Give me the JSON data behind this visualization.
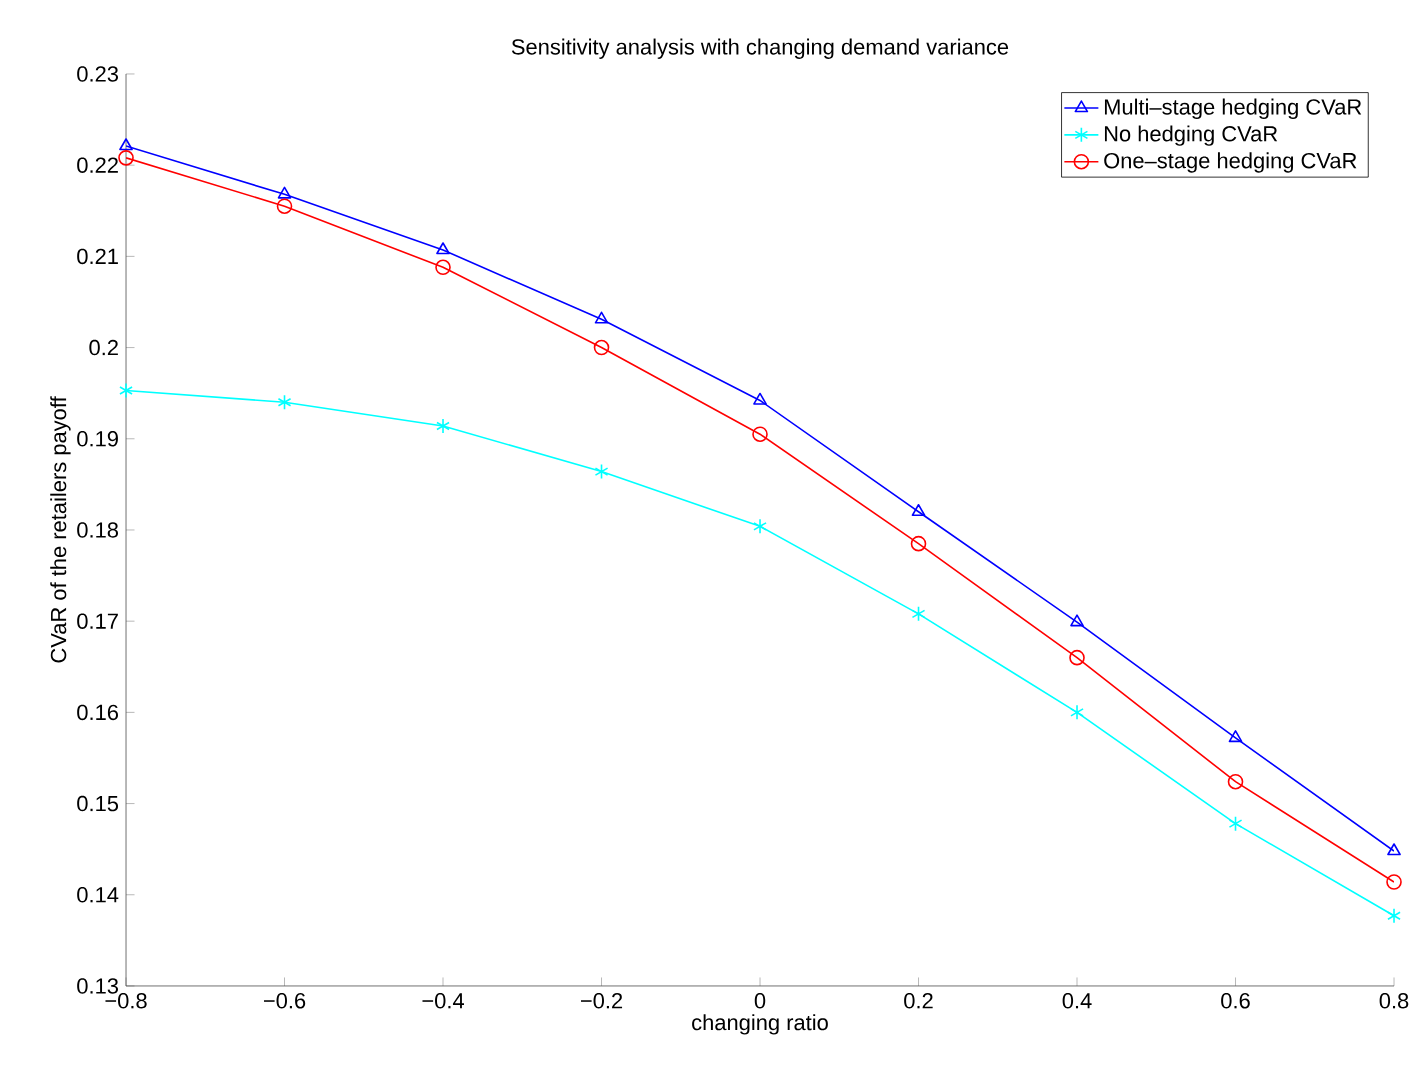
{
  "chart_data": {
    "type": "line",
    "title": "Sensitivity analysis with changing demand variance",
    "xlabel": "changing ratio",
    "ylabel": "CVaR of the retailers payoff",
    "x": [
      -0.8,
      -0.6,
      -0.4,
      -0.2,
      0,
      0.2,
      0.4,
      0.6,
      0.8
    ],
    "series": [
      {
        "name": "Multi–stage hedging CVaR",
        "color": "#0000ff",
        "marker": "triangle",
        "values": [
          0.2221,
          0.2168,
          0.2107,
          0.2031,
          0.1942,
          0.182,
          0.1699,
          0.1572,
          0.1448
        ]
      },
      {
        "name": "No hedging CVaR",
        "color": "#00ffff",
        "marker": "cross",
        "values": [
          0.1953,
          0.194,
          0.1914,
          0.1864,
          0.1804,
          0.1708,
          0.16,
          0.1478,
          0.1377
        ]
      },
      {
        "name": "One–stage hedging CVaR",
        "color": "#ff0000",
        "marker": "circle",
        "values": [
          0.2208,
          0.2155,
          0.2088,
          0.2,
          0.1905,
          0.1785,
          0.166,
          0.1524,
          0.1414
        ]
      }
    ],
    "xlim": [
      -0.8,
      0.8
    ],
    "ylim": [
      0.13,
      0.23
    ],
    "xticks": [
      {
        "value": -0.8,
        "label": "−0.8"
      },
      {
        "value": -0.6,
        "label": "−0.6"
      },
      {
        "value": -0.4,
        "label": "−0.4"
      },
      {
        "value": -0.2,
        "label": "−0.2"
      },
      0,
      0.2,
      0.4,
      0.6,
      0.8
    ],
    "yticks": [
      0.13,
      0.14,
      0.15,
      0.16,
      0.17,
      0.18,
      0.19,
      0.2,
      0.21,
      0.22,
      0.23
    ],
    "legend": "top right",
    "grid": false,
    "line_style": "solid"
  }
}
